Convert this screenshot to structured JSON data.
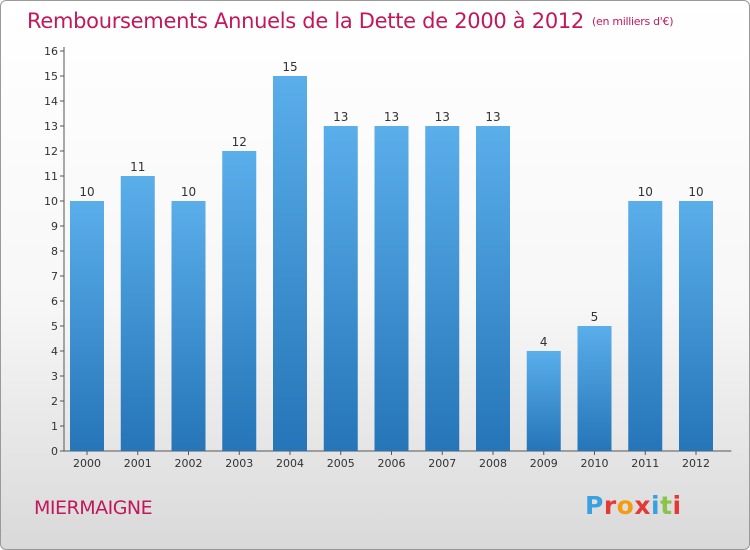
{
  "header": {
    "title": "Remboursements Annuels de la Dette de 2000 à 2012",
    "unit": "(en milliers d'€)"
  },
  "footer": {
    "commune": "MIERMAIGNE",
    "logo_letters": [
      "P",
      "r",
      "o",
      "x",
      "i",
      "t",
      "i"
    ],
    "logo_colors": [
      "#3aa0e0",
      "#e53935",
      "#f39c12",
      "#e53935",
      "#3aa0e0",
      "#8bc34a",
      "#e53935"
    ]
  },
  "colors": {
    "title": "#c2185b",
    "bar_top": "#5aaeea",
    "bar_bottom": "#2575b8"
  },
  "chart_data": {
    "type": "bar",
    "title": "Remboursements Annuels de la Dette de 2000 à 2012",
    "categories": [
      "2000",
      "2001",
      "2002",
      "2003",
      "2004",
      "2005",
      "2006",
      "2007",
      "2008",
      "2009",
      "2010",
      "2011",
      "2012"
    ],
    "values": [
      10,
      11,
      10,
      12,
      15,
      13,
      13,
      13,
      13,
      4,
      5,
      10,
      10
    ],
    "ylim": [
      0,
      16
    ],
    "yticks": [
      0,
      1,
      2,
      3,
      4,
      5,
      6,
      7,
      8,
      9,
      10,
      11,
      12,
      13,
      14,
      15,
      16
    ],
    "grid": false,
    "data_labels": true
  }
}
